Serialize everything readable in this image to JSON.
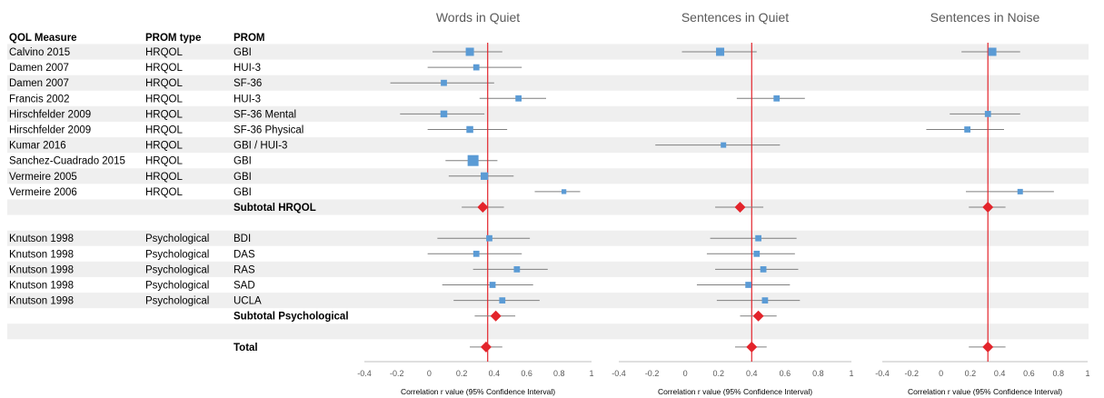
{
  "columns": [
    "QOL Measure",
    "PROM type",
    "PROM"
  ],
  "rows": [
    {
      "kind": "study",
      "measure": "Calvino 2015",
      "type": "HRQOL",
      "prom": "GBI"
    },
    {
      "kind": "study",
      "measure": "Damen 2007",
      "type": "HRQOL",
      "prom": "HUI-3"
    },
    {
      "kind": "study",
      "measure": "Damen 2007",
      "type": "HRQOL",
      "prom": "SF-36"
    },
    {
      "kind": "study",
      "measure": "Francis 2002",
      "type": "HRQOL",
      "prom": "HUI-3"
    },
    {
      "kind": "study",
      "measure": "Hirschfelder 2009",
      "type": "HRQOL",
      "prom": "SF-36 Mental"
    },
    {
      "kind": "study",
      "measure": "Hirschfelder 2009",
      "type": "HRQOL",
      "prom": "SF-36 Physical"
    },
    {
      "kind": "study",
      "measure": "Kumar 2016",
      "type": "HRQOL",
      "prom": "GBI / HUI-3"
    },
    {
      "kind": "study",
      "measure": "Sanchez-Cuadrado 2015",
      "type": "HRQOL",
      "prom": "GBI"
    },
    {
      "kind": "study",
      "measure": "Vermeire 2005",
      "type": "HRQOL",
      "prom": "GBI"
    },
    {
      "kind": "study",
      "measure": "Vermeire 2006",
      "type": "HRQOL",
      "prom": "GBI"
    },
    {
      "kind": "subtotal",
      "measure": "",
      "type": "",
      "prom": "Subtotal HRQOL"
    },
    {
      "kind": "blank",
      "measure": "",
      "type": "",
      "prom": ""
    },
    {
      "kind": "study",
      "measure": "Knutson 1998",
      "type": "Psychological",
      "prom": "BDI"
    },
    {
      "kind": "study",
      "measure": "Knutson 1998",
      "type": "Psychological",
      "prom": "DAS"
    },
    {
      "kind": "study",
      "measure": "Knutson 1998",
      "type": "Psychological",
      "prom": "RAS"
    },
    {
      "kind": "study",
      "measure": "Knutson 1998",
      "type": "Psychological",
      "prom": "SAD"
    },
    {
      "kind": "study",
      "measure": "Knutson 1998",
      "type": "Psychological",
      "prom": "UCLA"
    },
    {
      "kind": "subtotal",
      "measure": "",
      "type": "",
      "prom": "Subtotal Psychological"
    },
    {
      "kind": "blank",
      "measure": "",
      "type": "",
      "prom": ""
    },
    {
      "kind": "total",
      "measure": "",
      "type": "",
      "prom": "Total"
    }
  ],
  "colors": {
    "square": "#5B9BD5",
    "diamond": "#E3242B",
    "refline": "#E3242B",
    "ci": "#7f7f7f",
    "band": "#efefef",
    "axis": "#bfbfbf"
  },
  "chart_data": [
    {
      "type": "scatter",
      "title": "Words in Quiet",
      "xlabel": "Correlation r value (95% Confidence Interval)",
      "xlim": [
        -0.4,
        1
      ],
      "xticks": [
        "-0.4",
        "-0.2",
        "0",
        "0.2",
        "0.4",
        "0.6",
        "0.8",
        "1"
      ],
      "refline": 0.36,
      "points": [
        {
          "row": 0,
          "est": 0.25,
          "lo": 0.02,
          "hi": 0.45,
          "w": 4
        },
        {
          "row": 1,
          "est": 0.29,
          "lo": -0.01,
          "hi": 0.57,
          "w": 2.5
        },
        {
          "row": 2,
          "est": 0.09,
          "lo": -0.24,
          "hi": 0.4,
          "w": 2.5
        },
        {
          "row": 3,
          "est": 0.55,
          "lo": 0.31,
          "hi": 0.72,
          "w": 2.5
        },
        {
          "row": 4,
          "est": 0.09,
          "lo": -0.18,
          "hi": 0.34,
          "w": 3
        },
        {
          "row": 5,
          "est": 0.25,
          "lo": -0.01,
          "hi": 0.48,
          "w": 3
        },
        {
          "row": 7,
          "est": 0.27,
          "lo": 0.1,
          "hi": 0.42,
          "w": 6
        },
        {
          "row": 8,
          "est": 0.34,
          "lo": 0.12,
          "hi": 0.52,
          "w": 3.5
        },
        {
          "row": 9,
          "est": 0.83,
          "lo": 0.65,
          "hi": 0.93,
          "w": 1.5
        },
        {
          "row": 12,
          "est": 0.37,
          "lo": 0.05,
          "hi": 0.62,
          "w": 2.5
        },
        {
          "row": 13,
          "est": 0.29,
          "lo": -0.01,
          "hi": 0.57,
          "w": 2.5
        },
        {
          "row": 14,
          "est": 0.54,
          "lo": 0.27,
          "hi": 0.73,
          "w": 2.5
        },
        {
          "row": 15,
          "est": 0.39,
          "lo": 0.08,
          "hi": 0.64,
          "w": 2.5
        },
        {
          "row": 16,
          "est": 0.45,
          "lo": 0.15,
          "hi": 0.68,
          "w": 2.5
        }
      ],
      "summaries": [
        {
          "row": 10,
          "est": 0.33,
          "lo": 0.2,
          "hi": 0.46
        },
        {
          "row": 17,
          "est": 0.41,
          "lo": 0.28,
          "hi": 0.53
        },
        {
          "row": 19,
          "est": 0.35,
          "lo": 0.25,
          "hi": 0.45
        }
      ]
    },
    {
      "type": "scatter",
      "title": "Sentences in Quiet",
      "xlabel": "Correlation r value (95% Confidence Interval)",
      "xlim": [
        -0.4,
        1
      ],
      "xticks": [
        "-0.4",
        "-0.2",
        "0",
        "0.2",
        "0.4",
        "0.6",
        "0.8",
        "1"
      ],
      "refline": 0.4,
      "points": [
        {
          "row": 0,
          "est": 0.21,
          "lo": -0.02,
          "hi": 0.43,
          "w": 4
        },
        {
          "row": 3,
          "est": 0.55,
          "lo": 0.31,
          "hi": 0.72,
          "w": 2.5
        },
        {
          "row": 6,
          "est": 0.23,
          "lo": -0.18,
          "hi": 0.57,
          "w": 2
        },
        {
          "row": 12,
          "est": 0.44,
          "lo": 0.15,
          "hi": 0.67,
          "w": 2.5
        },
        {
          "row": 13,
          "est": 0.43,
          "lo": 0.13,
          "hi": 0.66,
          "w": 2.5
        },
        {
          "row": 14,
          "est": 0.47,
          "lo": 0.18,
          "hi": 0.68,
          "w": 2.5
        },
        {
          "row": 15,
          "est": 0.38,
          "lo": 0.07,
          "hi": 0.63,
          "w": 2.5
        },
        {
          "row": 16,
          "est": 0.48,
          "lo": 0.19,
          "hi": 0.69,
          "w": 2.5
        }
      ],
      "summaries": [
        {
          "row": 10,
          "est": 0.33,
          "lo": 0.18,
          "hi": 0.47
        },
        {
          "row": 17,
          "est": 0.44,
          "lo": 0.33,
          "hi": 0.55
        },
        {
          "row": 19,
          "est": 0.4,
          "lo": 0.3,
          "hi": 0.49
        }
      ]
    },
    {
      "type": "scatter",
      "title": "Sentences in Noise",
      "xlabel": "Correlation r value (95% Confidence Interval)",
      "xlim": [
        -0.4,
        1
      ],
      "xticks": [
        "-0.4",
        "-0.2",
        "0",
        "0.2",
        "0.4",
        "0.6",
        "0.8",
        "1"
      ],
      "refline": 0.32,
      "points": [
        {
          "row": 0,
          "est": 0.35,
          "lo": 0.14,
          "hi": 0.54,
          "w": 4
        },
        {
          "row": 4,
          "est": 0.32,
          "lo": 0.06,
          "hi": 0.54,
          "w": 2.5
        },
        {
          "row": 5,
          "est": 0.18,
          "lo": -0.1,
          "hi": 0.43,
          "w": 2.5
        },
        {
          "row": 9,
          "est": 0.54,
          "lo": 0.17,
          "hi": 0.77,
          "w": 2
        }
      ],
      "summaries": [
        {
          "row": 10,
          "est": 0.32,
          "lo": 0.19,
          "hi": 0.44
        },
        {
          "row": 19,
          "est": 0.32,
          "lo": 0.19,
          "hi": 0.44
        }
      ]
    }
  ]
}
